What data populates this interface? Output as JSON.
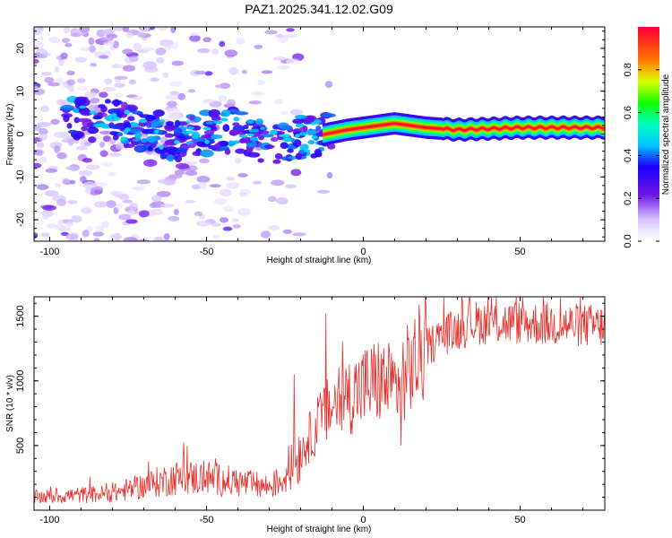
{
  "title": "PAZ1.2025.341.12.02.G09",
  "chart_data": [
    {
      "type": "heatmap",
      "xlabel": "Height of straight line (km)",
      "ylabel": "Frequency (Hz)",
      "xlim": [
        -105,
        77
      ],
      "ylim": [
        -25,
        25
      ],
      "xticks": [
        "-100",
        "-50",
        "0",
        "50"
      ],
      "yticks": [
        "20",
        "10",
        "0",
        "-10",
        "-20"
      ],
      "ridge": [
        {
          "x": -90,
          "f": 4
        },
        {
          "x": -80,
          "f": 3
        },
        {
          "x": -70,
          "f": 1
        },
        {
          "x": -60,
          "f": -1
        },
        {
          "x": -50,
          "f": 0
        },
        {
          "x": -40,
          "f": 1
        },
        {
          "x": -30,
          "f": -2
        },
        {
          "x": -20,
          "f": -1
        },
        {
          "x": -12,
          "f": 0
        },
        {
          "x": -5,
          "f": 1
        },
        {
          "x": 5,
          "f": 2
        },
        {
          "x": 10,
          "f": 2.5
        },
        {
          "x": 20,
          "f": 1.5
        },
        {
          "x": 30,
          "f": 1
        },
        {
          "x": 50,
          "f": 1.5
        },
        {
          "x": 77,
          "f": 1.5
        }
      ],
      "colorbar": {
        "label": "Normalized spectral amplitude",
        "ticks": [
          "0.0",
          "0.2",
          "0.4",
          "0.6",
          "0.8"
        ],
        "range": [
          0,
          1
        ]
      }
    },
    {
      "type": "line",
      "xlabel": "Height of straight line (km)",
      "ylabel": "SNR (10 * v/v)",
      "xlim": [
        -105,
        77
      ],
      "ylim": [
        0,
        1650
      ],
      "xticks": [
        "-100",
        "-50",
        "0",
        "50"
      ],
      "yticks": [
        "1500",
        "1000",
        "500"
      ],
      "color": "#e8302c",
      "trend": [
        {
          "x": -105,
          "y": 100
        },
        {
          "x": -80,
          "y": 130
        },
        {
          "x": -60,
          "y": 250
        },
        {
          "x": -50,
          "y": 250
        },
        {
          "x": -30,
          "y": 180
        },
        {
          "x": -25,
          "y": 250
        },
        {
          "x": -20,
          "y": 450
        },
        {
          "x": -15,
          "y": 650
        },
        {
          "x": -10,
          "y": 800
        },
        {
          "x": -5,
          "y": 880
        },
        {
          "x": 0,
          "y": 950
        },
        {
          "x": 5,
          "y": 1000
        },
        {
          "x": 10,
          "y": 950
        },
        {
          "x": 15,
          "y": 1100
        },
        {
          "x": 20,
          "y": 1250
        },
        {
          "x": 25,
          "y": 1350
        },
        {
          "x": 35,
          "y": 1450
        },
        {
          "x": 50,
          "y": 1450
        },
        {
          "x": 77,
          "y": 1420
        }
      ],
      "spikes": [
        {
          "x": -22,
          "y": 1050
        },
        {
          "x": -12,
          "y": 1520
        },
        {
          "x": 12,
          "y": 500
        },
        {
          "x": 34,
          "y": 1640
        }
      ]
    }
  ]
}
